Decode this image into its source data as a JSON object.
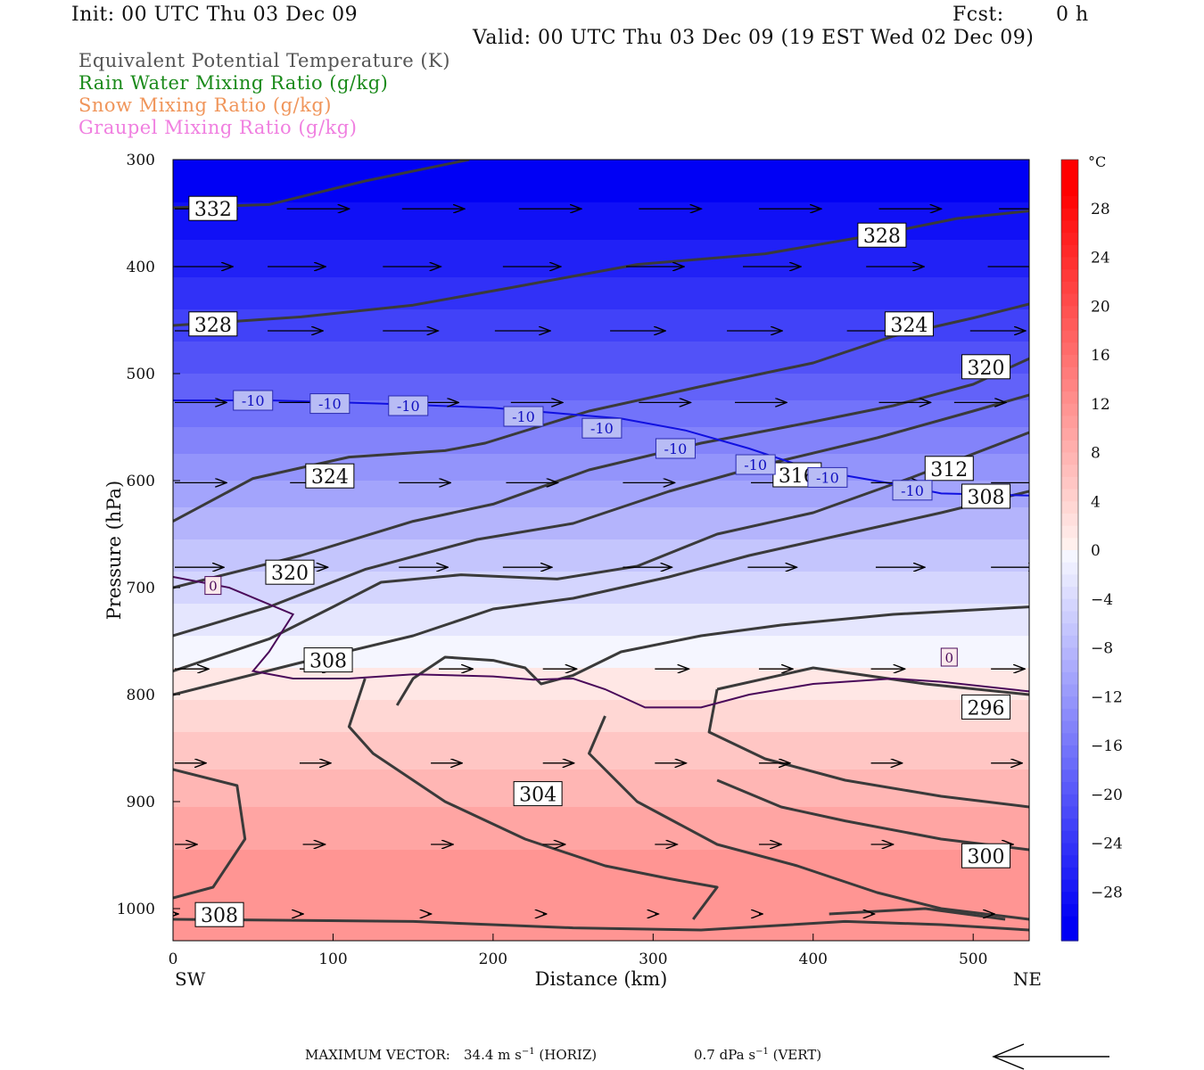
{
  "header": {
    "init": "Init: 00 UTC Thu 03 Dec 09",
    "fcst_label": "Fcst:",
    "fcst_value": "0 h",
    "valid": "Valid: 00 UTC Thu 03 Dec 09 (19 EST Wed 02 Dec 09)"
  },
  "titles": [
    {
      "text": "Equivalent Potential Temperature (K)",
      "color": "#555555"
    },
    {
      "text": "Rain Water Mixing Ratio (g/kg)",
      "color": "#1a8a1a"
    },
    {
      "text": "Snow Mixing Ratio (g/kg)",
      "color": "#f0955a"
    },
    {
      "text": "Graupel Mixing Ratio (g/kg)",
      "color": "#f07fe0"
    }
  ],
  "chart_data": {
    "type": "cross-section",
    "xlabel": "Distance (km)",
    "ylabel": "Pressure (hPa)",
    "x_range": [
      0,
      535
    ],
    "y_range": [
      1030,
      300
    ],
    "x_ticks": [
      0,
      100,
      200,
      300,
      400,
      500
    ],
    "y_ticks": [
      300,
      400,
      500,
      600,
      700,
      800,
      900,
      1000
    ],
    "x_end_labels": {
      "left": "SW",
      "right": "NE"
    },
    "temperature_bands": [
      {
        "p_top": 300,
        "p_bot": 340,
        "t": -30
      },
      {
        "p_top": 340,
        "p_bot": 375,
        "t": -28
      },
      {
        "p_top": 375,
        "p_bot": 410,
        "t": -26
      },
      {
        "p_top": 410,
        "p_bot": 440,
        "t": -24
      },
      {
        "p_top": 440,
        "p_bot": 470,
        "t": -22
      },
      {
        "p_top": 470,
        "p_bot": 500,
        "t": -20
      },
      {
        "p_top": 500,
        "p_bot": 525,
        "t": -18
      },
      {
        "p_top": 525,
        "p_bot": 550,
        "t": -16
      },
      {
        "p_top": 550,
        "p_bot": 575,
        "t": -14
      },
      {
        "p_top": 575,
        "p_bot": 600,
        "t": -12
      },
      {
        "p_top": 600,
        "p_bot": 625,
        "t": -10
      },
      {
        "p_top": 625,
        "p_bot": 655,
        "t": -8
      },
      {
        "p_top": 655,
        "p_bot": 685,
        "t": -6
      },
      {
        "p_top": 685,
        "p_bot": 715,
        "t": -4
      },
      {
        "p_top": 715,
        "p_bot": 745,
        "t": -2
      },
      {
        "p_top": 745,
        "p_bot": 775,
        "t": 0
      },
      {
        "p_top": 775,
        "p_bot": 805,
        "t": 2
      },
      {
        "p_top": 805,
        "p_bot": 835,
        "t": 4
      },
      {
        "p_top": 835,
        "p_bot": 870,
        "t": 6
      },
      {
        "p_top": 870,
        "p_bot": 905,
        "t": 8
      },
      {
        "p_top": 905,
        "p_bot": 945,
        "t": 10
      },
      {
        "p_top": 945,
        "p_bot": 1030,
        "t": 12
      }
    ],
    "theta_e_contours": [
      {
        "label": "332",
        "points": [
          [
            0,
            345
          ],
          [
            60,
            342
          ],
          [
            120,
            320
          ],
          [
            185,
            300
          ]
        ]
      },
      {
        "label": "328",
        "points": [
          [
            0,
            455
          ],
          [
            80,
            447
          ],
          [
            150,
            436
          ],
          [
            210,
            420
          ],
          [
            290,
            398
          ],
          [
            370,
            388
          ],
          [
            440,
            370
          ],
          [
            490,
            355
          ],
          [
            535,
            348
          ]
        ]
      },
      {
        "label": "324",
        "points": [
          [
            0,
            638
          ],
          [
            50,
            598
          ],
          [
            110,
            578
          ],
          [
            170,
            572
          ],
          [
            195,
            565
          ],
          [
            260,
            535
          ],
          [
            330,
            512
          ],
          [
            400,
            490
          ],
          [
            450,
            465
          ],
          [
            500,
            448
          ],
          [
            535,
            435
          ]
        ]
      },
      {
        "label": "320",
        "points": [
          [
            0,
            700
          ],
          [
            80,
            670
          ],
          [
            150,
            638
          ],
          [
            200,
            622
          ],
          [
            260,
            590
          ],
          [
            330,
            565
          ],
          [
            400,
            545
          ],
          [
            450,
            530
          ],
          [
            500,
            510
          ],
          [
            535,
            486
          ]
        ]
      },
      {
        "label": "316",
        "points": [
          [
            0,
            745
          ],
          [
            60,
            718
          ],
          [
            120,
            683
          ],
          [
            190,
            655
          ],
          [
            250,
            640
          ],
          [
            310,
            610
          ],
          [
            370,
            585
          ],
          [
            440,
            560
          ],
          [
            500,
            535
          ],
          [
            535,
            520
          ]
        ]
      },
      {
        "label": "312",
        "points": [
          [
            0,
            778
          ],
          [
            60,
            748
          ],
          [
            100,
            718
          ],
          [
            130,
            695
          ],
          [
            180,
            688
          ],
          [
            240,
            692
          ],
          [
            290,
            680
          ],
          [
            340,
            650
          ],
          [
            400,
            630
          ],
          [
            460,
            598
          ],
          [
            535,
            555
          ]
        ]
      },
      {
        "label": "308",
        "points": [
          [
            0,
            800
          ],
          [
            80,
            770
          ],
          [
            150,
            745
          ],
          [
            200,
            720
          ],
          [
            250,
            710
          ],
          [
            310,
            690
          ],
          [
            360,
            670
          ],
          [
            420,
            650
          ],
          [
            480,
            630
          ],
          [
            535,
            610
          ]
        ]
      },
      {
        "label": "304",
        "points": [
          [
            140,
            810
          ],
          [
            150,
            785
          ],
          [
            170,
            765
          ],
          [
            200,
            768
          ],
          [
            220,
            775
          ],
          [
            230,
            790
          ],
          [
            250,
            782
          ],
          [
            280,
            760
          ],
          [
            330,
            745
          ],
          [
            380,
            735
          ],
          [
            450,
            725
          ],
          [
            535,
            718
          ]
        ]
      },
      {
        "label": "308b",
        "points": [
          [
            0,
            870
          ],
          [
            40,
            885
          ],
          [
            45,
            935
          ],
          [
            25,
            980
          ],
          [
            0,
            990
          ]
        ]
      },
      {
        "label": "304b",
        "points": [
          [
            120,
            785
          ],
          [
            110,
            830
          ],
          [
            125,
            855
          ],
          [
            170,
            900
          ],
          [
            220,
            935
          ],
          [
            270,
            960
          ],
          [
            310,
            972
          ],
          [
            340,
            980
          ],
          [
            325,
            1010
          ]
        ]
      },
      {
        "label": "300",
        "points": [
          [
            270,
            820
          ],
          [
            260,
            855
          ],
          [
            290,
            900
          ],
          [
            340,
            940
          ],
          [
            390,
            960
          ],
          [
            440,
            985
          ],
          [
            480,
            1000
          ],
          [
            535,
            1010
          ]
        ]
      },
      {
        "label": "296",
        "points": [
          [
            340,
            795
          ],
          [
            335,
            835
          ],
          [
            370,
            860
          ],
          [
            420,
            880
          ],
          [
            480,
            895
          ],
          [
            535,
            905
          ]
        ]
      },
      {
        "label": "296b",
        "points": [
          [
            340,
            795
          ],
          [
            400,
            775
          ],
          [
            470,
            790
          ],
          [
            535,
            800
          ]
        ]
      },
      {
        "label": "300b",
        "points": [
          [
            535,
            945
          ],
          [
            480,
            935
          ],
          [
            420,
            918
          ],
          [
            380,
            905
          ],
          [
            340,
            880
          ]
        ]
      },
      {
        "label": "surf",
        "points": [
          [
            0,
            1010
          ],
          [
            150,
            1012
          ],
          [
            250,
            1018
          ],
          [
            330,
            1020
          ],
          [
            420,
            1012
          ],
          [
            480,
            1015
          ],
          [
            535,
            1020
          ]
        ]
      },
      {
        "label": "surf2",
        "points": [
          [
            410,
            1005
          ],
          [
            470,
            1000
          ],
          [
            520,
            1010
          ]
        ]
      }
    ],
    "theta_e_labels": [
      {
        "text": "332",
        "x": 25,
        "p": 346
      },
      {
        "text": "328",
        "x": 443,
        "p": 371
      },
      {
        "text": "328",
        "x": 25,
        "p": 454
      },
      {
        "text": "324",
        "x": 460,
        "p": 454
      },
      {
        "text": "320",
        "x": 508,
        "p": 494
      },
      {
        "text": "324",
        "x": 98,
        "p": 596
      },
      {
        "text": "316",
        "x": 390,
        "p": 595
      },
      {
        "text": "312",
        "x": 485,
        "p": 589
      },
      {
        "text": "308",
        "x": 508,
        "p": 615
      },
      {
        "text": "320",
        "x": 73,
        "p": 686
      },
      {
        "text": "308",
        "x": 97,
        "p": 768
      },
      {
        "text": "296",
        "x": 508,
        "p": 812
      },
      {
        "text": "304",
        "x": 228,
        "p": 893
      },
      {
        "text": "300",
        "x": 508,
        "p": 951
      },
      {
        "text": "308",
        "x": 29,
        "p": 1006
      }
    ],
    "isotherm_neg10": {
      "points": [
        [
          0,
          525
        ],
        [
          60,
          525
        ],
        [
          130,
          528
        ],
        [
          200,
          532
        ],
        [
          240,
          537
        ],
        [
          280,
          542
        ],
        [
          320,
          553
        ],
        [
          360,
          570
        ],
        [
          400,
          590
        ],
        [
          450,
          603
        ],
        [
          480,
          612
        ],
        [
          535,
          614
        ]
      ],
      "labels": [
        [
          50,
          525
        ],
        [
          98,
          528
        ],
        [
          147,
          530
        ],
        [
          219,
          540
        ],
        [
          268,
          551
        ],
        [
          314,
          570
        ],
        [
          364,
          585
        ],
        [
          409,
          597
        ],
        [
          462,
          609
        ]
      ],
      "text": "-10",
      "color": "#1010e0"
    },
    "isotherm_zero": {
      "points": [
        [
          0,
          690
        ],
        [
          35,
          700
        ],
        [
          75,
          725
        ],
        [
          60,
          760
        ],
        [
          50,
          778
        ],
        [
          75,
          785
        ],
        [
          110,
          785
        ],
        [
          150,
          781
        ],
        [
          200,
          783
        ],
        [
          225,
          786
        ],
        [
          250,
          785
        ],
        [
          270,
          795
        ],
        [
          295,
          812
        ],
        [
          330,
          812
        ],
        [
          360,
          800
        ],
        [
          400,
          790
        ],
        [
          450,
          785
        ],
        [
          480,
          788
        ],
        [
          535,
          797
        ]
      ],
      "labels": [
        [
          25,
          698
        ],
        [
          485,
          765
        ]
      ],
      "text": "0",
      "color": "#4a0a5a"
    },
    "colorbar": {
      "unit": "°C",
      "labels": [
        "28",
        "24",
        "20",
        "16",
        "12",
        "8",
        "4",
        "0",
        "−4",
        "−8",
        "−12",
        "−16",
        "−20",
        "−24",
        "−28"
      ],
      "values": [
        28,
        24,
        20,
        16,
        12,
        8,
        4,
        0,
        -4,
        -8,
        -12,
        -16,
        -20,
        -24,
        -28
      ]
    },
    "wind_rows": [
      {
        "p": 346,
        "x": [
          0,
          70,
          142,
          215,
          290,
          365,
          440,
          515
        ],
        "len": 70
      },
      {
        "p": 400,
        "x": [
          0,
          58,
          130,
          205,
          282,
          355,
          432,
          508
        ],
        "len": 65
      },
      {
        "p": 460,
        "x": [
          0,
          58,
          130,
          200,
          272,
          345,
          420,
          497
        ],
        "len": 62
      },
      {
        "p": 527,
        "x": [
          0,
          65,
          145,
          210,
          290,
          350,
          440,
          487
        ],
        "len": 58
      },
      {
        "p": 602,
        "x": [
          0,
          72,
          140,
          207,
          280,
          360,
          435,
          510
        ],
        "len": 58
      },
      {
        "p": 681,
        "x": [
          0,
          65,
          140,
          205,
          280,
          358,
          438,
          510
        ],
        "len": 55
      },
      {
        "p": 776,
        "x": [
          0,
          78,
          165,
          230,
          300,
          365,
          435,
          510
        ],
        "len": 38
      },
      {
        "p": 864,
        "x": [
          0,
          78,
          160,
          230,
          300,
          365,
          435,
          510
        ],
        "len": 35
      },
      {
        "p": 940,
        "x": [
          0,
          80,
          160,
          230,
          300,
          365,
          435,
          510
        ],
        "len": 25
      },
      {
        "p": 1005,
        "x": [
          0,
          78,
          158,
          230,
          300,
          365,
          435,
          510
        ],
        "len": 4
      }
    ]
  },
  "footer": {
    "max_vector_label": "MAXIMUM VECTOR:",
    "horiz": "34.4 m s",
    "horiz_exp": "−1",
    "horiz_tag": "(HORIZ)",
    "vert": "0.7 dPa s",
    "vert_exp": "−1",
    "vert_tag": "(VERT)"
  }
}
